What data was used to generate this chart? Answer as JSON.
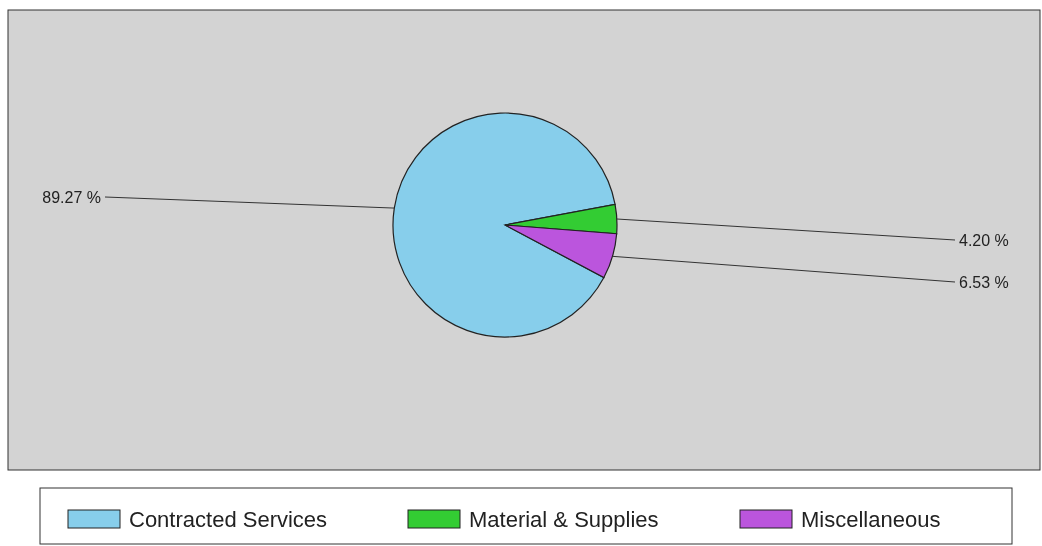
{
  "chart_data": {
    "type": "pie",
    "categories": [
      "Contracted Services",
      "Material & Supplies",
      "Miscellaneous"
    ],
    "values": [
      89.27,
      4.2,
      6.53
    ],
    "colors": [
      "#87ceeb",
      "#33cc33",
      "#bb55dd"
    ],
    "value_labels": [
      "89.27 %",
      "4.20 %",
      "6.53 %"
    ],
    "legend": "bottom"
  }
}
